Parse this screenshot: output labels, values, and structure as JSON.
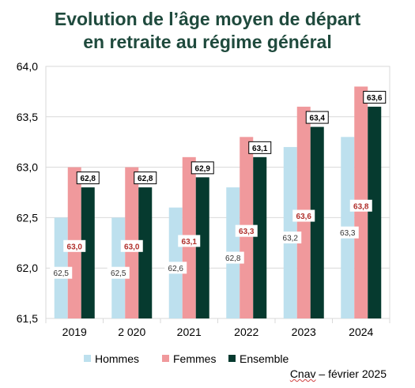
{
  "title_line1": "Evolution de l’âge moyen de départ",
  "title_line2": "en retraite au régime général",
  "footer": {
    "source": "Cnav",
    "rest": " – février 2025"
  },
  "colors": {
    "hommes": "#bde0ee",
    "femmes": "#f0999c",
    "ensemble": "#063a2f",
    "title": "#1f4a3d",
    "femmes_label": "#b0302c"
  },
  "chart_data": {
    "type": "bar",
    "title": "Evolution de l’âge moyen de départ en retraite au régime général",
    "categories": [
      "2019",
      "2 020",
      "2021",
      "2022",
      "2023",
      "2024"
    ],
    "ylim": [
      61.5,
      64.0
    ],
    "yticks": [
      "61,5",
      "62,0",
      "62,5",
      "63,0",
      "63,5",
      "64,0"
    ],
    "ytick_values": [
      61.5,
      62.0,
      62.5,
      63.0,
      63.5,
      64.0
    ],
    "grid": true,
    "legend_position": "bottom",
    "series": [
      {
        "name": "Hommes",
        "values": [
          62.5,
          62.5,
          62.6,
          62.8,
          63.2,
          63.3
        ],
        "labels": [
          "62,5",
          "62,5",
          "62,6",
          "62,8",
          "63,2",
          "63,3"
        ]
      },
      {
        "name": "Femmes",
        "values": [
          63.0,
          63.0,
          63.1,
          63.3,
          63.6,
          63.8
        ],
        "labels": [
          "63,0",
          "63,0",
          "63,1",
          "63,3",
          "63,6",
          "63,8"
        ]
      },
      {
        "name": "Ensemble",
        "values": [
          62.8,
          62.8,
          62.9,
          63.1,
          63.4,
          63.6
        ],
        "labels": [
          "62,8",
          "62,8",
          "62,9",
          "63,1",
          "63,4",
          "63,6"
        ]
      }
    ]
  }
}
